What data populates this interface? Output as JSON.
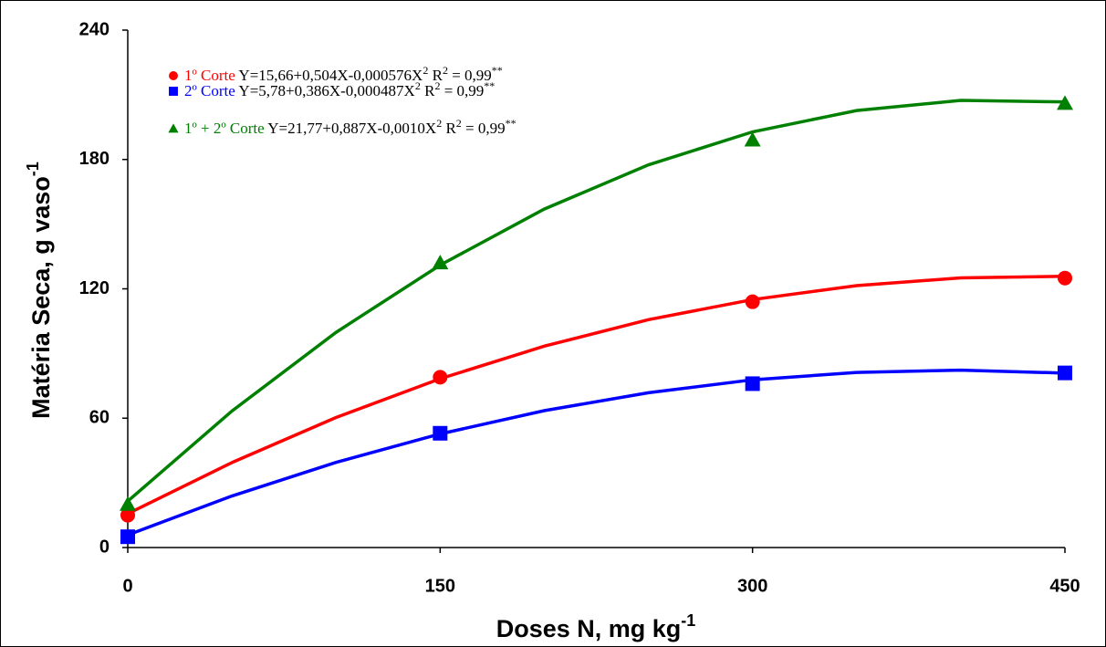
{
  "chart_data": {
    "type": "line",
    "x_label": [
      "Doses N, mg kg",
      "-1"
    ],
    "y_label": [
      "Matéria Seca, g vaso",
      "-1"
    ],
    "x": [
      0,
      150,
      300,
      450
    ],
    "fit_x": [
      0,
      50,
      100,
      150,
      200,
      250,
      300,
      350,
      400,
      450
    ],
    "xlim": [
      0,
      450
    ],
    "xticks": [
      0,
      150,
      300,
      450
    ],
    "ylim": [
      0,
      240
    ],
    "yticks": [
      0,
      60,
      120,
      180,
      240
    ],
    "grid": false,
    "series": [
      {
        "name": "1º Corte",
        "color": "#ff0000",
        "marker": "circle",
        "equation": [
          "Y=15,66+0,504X-0,000576X",
          "2",
          "  R",
          "2",
          " = 0,99",
          "**"
        ],
        "values": [
          15,
          79,
          114,
          125
        ],
        "fit_values": [
          15.7,
          39.4,
          60.3,
          78.3,
          93.4,
          105.7,
          115.0,
          121.5,
          125.1,
          125.8
        ]
      },
      {
        "name": "2º Corte",
        "color": "#0000ff",
        "marker": "square",
        "equation": [
          "Y=5,78+0,386X-0,000487X",
          "2",
          "  R",
          "2",
          " = 0,99",
          "**"
        ],
        "values": [
          5,
          53,
          76,
          81
        ],
        "fit_values": [
          5.8,
          23.9,
          39.5,
          52.7,
          63.5,
          71.8,
          77.8,
          81.2,
          82.3,
          80.9
        ]
      },
      {
        "name": "1º + 2º Corte",
        "color": "#008000",
        "marker": "triangle",
        "equation": [
          "Y=21,77+0,887X-0,0010X",
          "2",
          "  R",
          "2",
          " = 0,99",
          "**"
        ],
        "values": [
          20,
          132,
          189,
          206
        ],
        "fit_values": [
          21.5,
          63.3,
          99.8,
          131,
          157,
          177.5,
          192.8,
          202.7,
          207.4,
          206.7
        ]
      }
    ]
  }
}
